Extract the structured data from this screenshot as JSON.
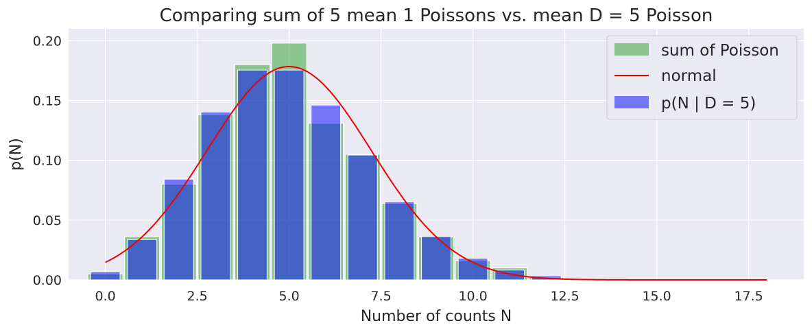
{
  "chart_data": {
    "type": "bar",
    "title": "Comparing sum of 5 mean 1 Poissons vs. mean D = 5 Poisson",
    "xlabel": "Number of counts N",
    "ylabel": "p(N)",
    "xlim": [
      -1,
      19
    ],
    "ylim": [
      0,
      0.21
    ],
    "xticks": [
      "0.0",
      "2.5",
      "5.0",
      "7.5",
      "10.0",
      "12.5",
      "15.0",
      "17.5"
    ],
    "xtick_values": [
      0,
      2.5,
      5,
      7.5,
      10,
      12.5,
      15,
      17.5
    ],
    "yticks": [
      "0.00",
      "0.05",
      "0.10",
      "0.15",
      "0.20"
    ],
    "ytick_values": [
      0,
      0.05,
      0.1,
      0.15,
      0.2
    ],
    "grid": true,
    "legend_position": "top-right",
    "series": [
      {
        "name": "sum of Poisson",
        "kind": "bar",
        "color": "#2ca02c",
        "x": [
          0,
          1,
          2,
          3,
          4,
          5,
          6,
          7,
          8,
          9,
          10,
          11,
          12
        ],
        "values": [
          0.005,
          0.036,
          0.08,
          0.138,
          0.18,
          0.198,
          0.131,
          0.105,
          0.064,
          0.036,
          0.016,
          0.01,
          0.002
        ]
      },
      {
        "name": "normal",
        "kind": "line",
        "color": "#ee0000",
        "mean": 5,
        "std": 2.236,
        "x_range": [
          0,
          18
        ]
      },
      {
        "name": "p(N | D = 5)",
        "kind": "bar",
        "color": "#0000ff",
        "x": [
          0,
          1,
          2,
          3,
          4,
          5,
          6,
          7,
          8,
          9,
          10,
          11,
          12
        ],
        "values": [
          0.0067,
          0.0337,
          0.0842,
          0.1404,
          0.1755,
          0.1755,
          0.1462,
          0.1044,
          0.0653,
          0.0363,
          0.0181,
          0.0082,
          0.0034
        ]
      }
    ]
  }
}
